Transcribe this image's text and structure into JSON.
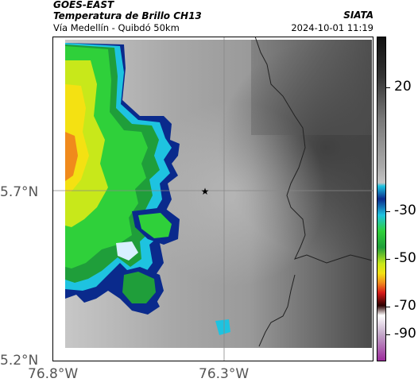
{
  "header": {
    "satellite": "GOES-EAST",
    "product": "Temperatura de Brillo CH13",
    "region": "Vía Medellín - Quibdó 50km",
    "provider": "SIATA",
    "timestamp": "2024-10-01 11:19"
  },
  "map": {
    "lat_labels": [
      "5.7°N",
      "5.2°N"
    ],
    "lon_labels": [
      "76.8°W",
      "76.3°W"
    ],
    "marker": "star-icon",
    "colors": {
      "cold_cloud_blue": "#0a2a8c",
      "cyan": "#18c4e0",
      "green": "#22b52a",
      "yellow": "#f0e410",
      "orange": "#f08a1c",
      "warm_surface_dark": "#4a4a4a",
      "warm_surface_light": "#b8b8b8"
    }
  },
  "colorbar": {
    "ticks": [
      "20",
      "-30",
      "-50",
      "-70",
      "-90"
    ],
    "tick_values": [
      20,
      -30,
      -50,
      -70,
      -90
    ],
    "range": [
      -95,
      35
    ]
  }
}
